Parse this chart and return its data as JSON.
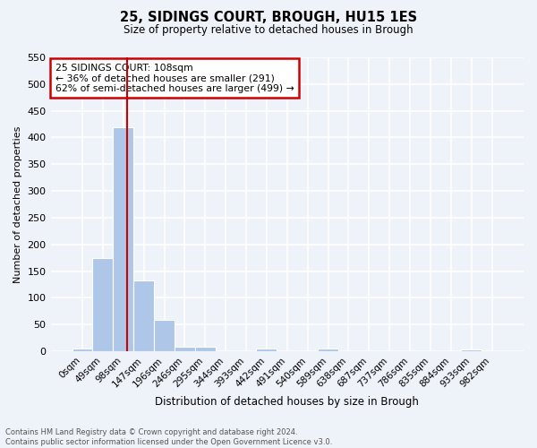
{
  "title1": "25, SIDINGS COURT, BROUGH, HU15 1ES",
  "title2": "Size of property relative to detached houses in Brough",
  "xlabel": "Distribution of detached houses by size in Brough",
  "ylabel": "Number of detached properties",
  "bin_labels": [
    "0sqm",
    "49sqm",
    "98sqm",
    "147sqm",
    "196sqm",
    "246sqm",
    "295sqm",
    "344sqm",
    "393sqm",
    "442sqm",
    "491sqm",
    "540sqm",
    "589sqm",
    "638sqm",
    "687sqm",
    "737sqm",
    "786sqm",
    "835sqm",
    "884sqm",
    "933sqm",
    "982sqm"
  ],
  "bar_values": [
    5,
    175,
    420,
    132,
    58,
    8,
    8,
    0,
    0,
    5,
    0,
    0,
    5,
    0,
    0,
    0,
    0,
    0,
    0,
    3,
    0
  ],
  "bar_color": "#aec6e8",
  "bar_edge_color": "#6aaed6",
  "vline_color": "#cc0000",
  "annotation_box_text": "25 SIDINGS COURT: 108sqm\n← 36% of detached houses are smaller (291)\n62% of semi-detached houses are larger (499) →",
  "annotation_box_color": "#cc0000",
  "ylim": [
    0,
    550
  ],
  "yticks": [
    0,
    50,
    100,
    150,
    200,
    250,
    300,
    350,
    400,
    450,
    500,
    550
  ],
  "footer_line1": "Contains HM Land Registry data © Crown copyright and database right 2024.",
  "footer_line2": "Contains public sector information licensed under the Open Government Licence v3.0.",
  "bg_color": "#eef2f9",
  "grid_color": "#ffffff"
}
